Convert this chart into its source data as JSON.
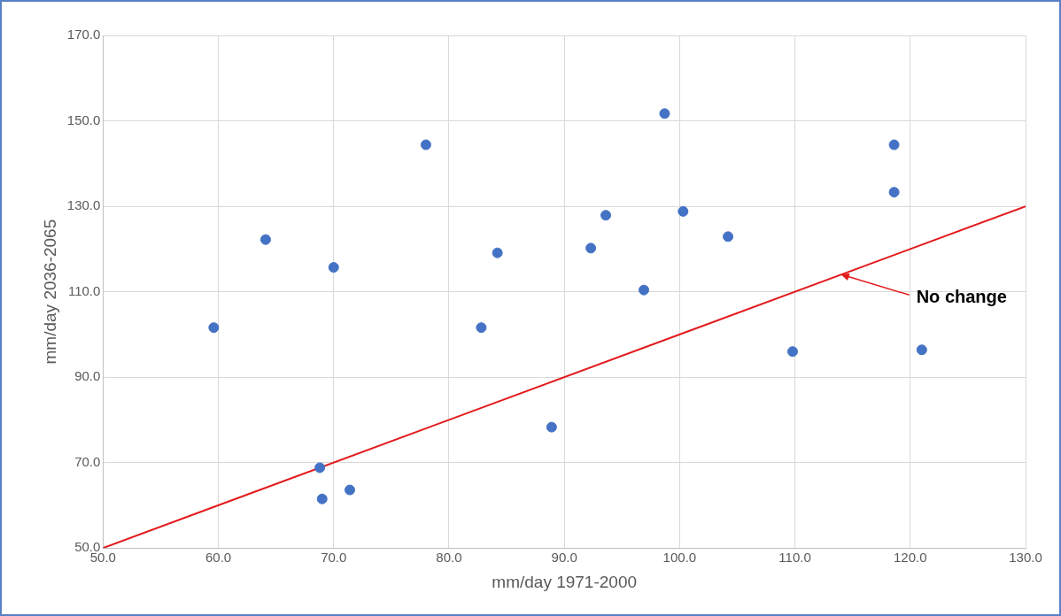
{
  "chart_data": {
    "type": "scatter",
    "xlabel": "mm/day 1971-2000",
    "ylabel": "mm/day 2036-2065",
    "series": [
      {
        "color": "#4472c4",
        "marker": "circle",
        "x": [
          59.6,
          64.1,
          70.0,
          78.0,
          68.8,
          69.0,
          71.4,
          82.8,
          84.2,
          88.9,
          92.3,
          93.6,
          96.9,
          98.7,
          100.3,
          104.2,
          109.8,
          118.6,
          118.6,
          121.0
        ],
        "values": [
          101.6,
          122.2,
          115.7,
          144.4,
          68.8,
          61.5,
          63.6,
          101.6,
          119.1,
          78.3,
          120.2,
          127.9,
          110.4,
          151.7,
          128.8,
          122.9,
          96.0,
          144.4,
          133.3,
          96.4
        ]
      },
      {
        "type": "line",
        "color": "#e31a1c",
        "x": [
          50,
          130
        ],
        "values": [
          50,
          130
        ]
      }
    ],
    "xlim": [
      50,
      130
    ],
    "xticks": [
      {
        "value": 50,
        "label": "50.0"
      },
      {
        "value": 60,
        "label": "60.0"
      },
      {
        "value": 70,
        "label": "70.0"
      },
      {
        "value": 80,
        "label": "80.0"
      },
      {
        "value": 90,
        "label": "90.0"
      },
      {
        "value": 100,
        "label": "100.0"
      },
      {
        "value": 110,
        "label": "110.0"
      },
      {
        "value": 120,
        "label": "120.0"
      },
      {
        "value": 130,
        "label": "130.0"
      }
    ],
    "ylim": [
      50,
      170
    ],
    "yticks": [
      {
        "value": 50,
        "label": "50.0"
      },
      {
        "value": 70,
        "label": "70.0"
      },
      {
        "value": 90,
        "label": "90.0"
      },
      {
        "value": 110,
        "label": "110.0"
      },
      {
        "value": 130,
        "label": "130.0"
      },
      {
        "value": 150,
        "label": "150.0"
      },
      {
        "value": 170,
        "label": "170.0"
      }
    ],
    "annotations": [
      {
        "text": "No change",
        "x": 114,
        "y": 114
      }
    ],
    "grid": true,
    "legend": false
  }
}
